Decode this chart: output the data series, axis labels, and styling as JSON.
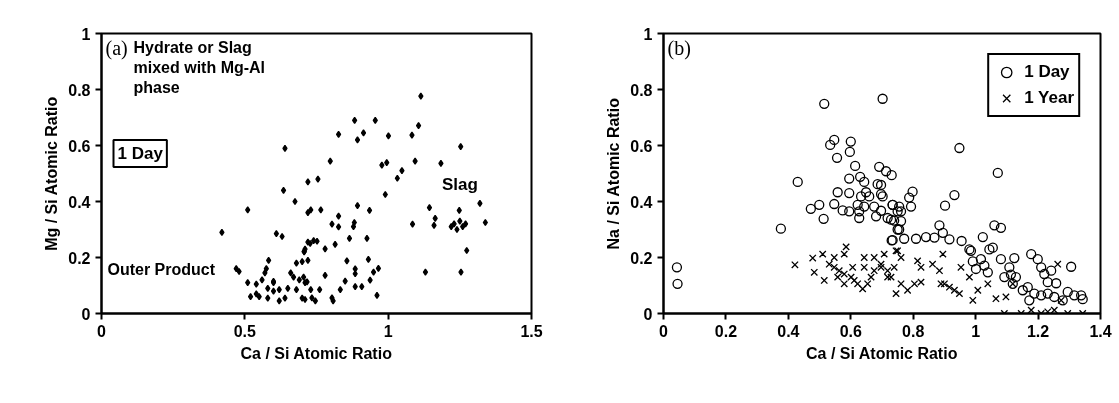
{
  "chart_data": [
    {
      "type": "scatter",
      "title": "(a)",
      "xlabel": "Ca / Si Atomic Ratio",
      "ylabel": "Mg / Si Atomic Ratio",
      "xlim": [
        0,
        1.5
      ],
      "ylim": [
        0,
        1
      ],
      "xticks": [
        0,
        0.5,
        1,
        1.5
      ],
      "yticks": [
        0,
        0.2,
        0.4,
        0.6,
        0.8,
        1
      ],
      "grid": false,
      "legend": false,
      "marker": "diamond",
      "annotations": [
        "Hydrate or Slag\nmixed with Mg-Al\nphase",
        "Outer Product",
        {
          "text": "Slag",
          "x": 1.25,
          "y": 0.32
        },
        "1 Day"
      ],
      "series": [
        {
          "color": "#000000",
          "x": [
            0.64,
            0.635,
            0.72,
            0.755,
            0.675,
            0.72,
            0.73,
            0.51,
            0.42,
            0.61,
            0.63,
            0.72,
            0.74,
            0.707,
            0.71,
            0.72,
            0.7,
            0.68,
            0.583,
            0.575,
            0.57,
            0.47,
            0.48,
            0.51,
            0.54,
            0.56,
            0.6,
            0.66,
            0.67,
            0.69,
            0.71,
            0.68,
            0.65,
            0.6,
            0.58,
            0.52,
            0.55,
            0.58,
            0.62,
            0.64,
            0.7,
            0.71,
            0.73,
            0.6,
            0.62,
            0.54,
            1.114,
            0.883,
            0.955,
            0.914,
            0.893,
            0.827,
            1.001,
            1.083,
            1.106,
            1.253,
            0.798,
            0.978,
            0.995,
            1.094,
            1.184,
            1.048,
            1.032,
            0.99,
            0.893,
            0.935,
            1.144,
            1.32,
            1.248,
            1.339,
            1.085,
            1.164,
            1.16,
            1.22,
            1.23,
            1.25,
            1.26,
            1.27,
            1.24,
            1.274,
            1.13,
            1.254,
            0.765,
            0.827,
            0.804,
            0.827,
            0.882,
            0.879,
            0.865,
            0.926,
            0.815,
            0.78,
            0.752,
            0.728,
            0.707,
            0.856,
            0.931,
            0.885,
            0.885,
            0.966,
            0.949,
            0.78,
            0.85,
            0.885,
            0.908,
            0.937,
            0.833,
            0.761,
            0.734,
            0.746,
            0.804,
            0.808,
            0.961,
            0.705,
            0.717
          ],
          "values": [
            0.59,
            0.44,
            0.47,
            0.48,
            0.4,
            0.36,
            0.37,
            0.37,
            0.29,
            0.285,
            0.275,
            0.255,
            0.26,
            0.22,
            0.23,
            0.19,
            0.185,
            0.18,
            0.19,
            0.16,
            0.145,
            0.16,
            0.15,
            0.11,
            0.105,
            0.12,
            0.115,
            0.145,
            0.13,
            0.12,
            0.11,
            0.085,
            0.09,
            0.08,
            0.09,
            0.06,
            0.06,
            0.055,
            0.045,
            0.055,
            0.055,
            0.05,
            0.085,
            0.11,
            0.085,
            0.07,
            0.776,
            0.69,
            0.69,
            0.645,
            0.62,
            0.64,
            0.634,
            0.637,
            0.671,
            0.596,
            0.544,
            0.53,
            0.539,
            0.544,
            0.536,
            0.51,
            0.483,
            0.425,
            0.385,
            0.368,
            0.378,
            0.393,
            0.368,
            0.325,
            0.319,
            0.34,
            0.315,
            0.31,
            0.32,
            0.33,
            0.31,
            0.32,
            0.3,
            0.225,
            0.148,
            0.148,
            0.37,
            0.348,
            0.319,
            0.309,
            0.325,
            0.31,
            0.268,
            0.268,
            0.247,
            0.231,
            0.258,
            0.25,
            0.222,
            0.188,
            0.193,
            0.159,
            0.142,
            0.161,
            0.148,
            0.136,
            0.116,
            0.096,
            0.096,
            0.119,
            0.085,
            0.085,
            0.056,
            0.045,
            0.056,
            0.045,
            0.065,
            0.13,
            0.113
          ]
        }
      ]
    },
    {
      "type": "scatter",
      "title": "(b)",
      "xlabel": "Ca / Si Atomic Ratio",
      "ylabel": "Na / Si Atomic Ratio",
      "xlim": [
        0,
        1.4
      ],
      "ylim": [
        0,
        1
      ],
      "xticks": [
        0,
        0.2,
        0.4,
        0.6,
        0.8,
        1,
        1.2,
        1.4
      ],
      "yticks": [
        0,
        0.2,
        0.4,
        0.6,
        0.8,
        1
      ],
      "grid": false,
      "legend": "top right",
      "series": [
        {
          "name": "1 Day",
          "color": "#000000",
          "marker": "circle",
          "x": [
            0.043,
            0.045,
            0.376,
            0.43,
            0.515,
            0.702,
            0.534,
            0.547,
            0.6,
            0.597,
            0.556,
            0.614,
            0.691,
            0.713,
            0.731,
            0.63,
            0.595,
            0.643,
            0.686,
            0.558,
            0.595,
            0.649,
            0.697,
            0.659,
            0.633,
            0.472,
            0.499,
            0.513,
            0.547,
            0.574,
            0.595,
            0.622,
            0.627,
            0.643,
            0.675,
            0.681,
            0.697,
            0.718,
            0.734,
            0.729,
            0.75,
            0.761,
            0.627,
            0.731,
            0.948,
            1.071,
            0.697,
            0.702,
            0.734,
            0.755,
            0.75,
            0.793,
            0.798,
            0.787,
            0.739,
            0.761,
            0.755,
            0.734,
            0.771,
            0.809,
            0.841,
            0.868,
            0.884,
            0.895,
            0.916,
            0.955,
            0.98,
            1.023,
            1.055,
            1.044,
            1.06,
            1.081,
            0.932,
            0.902,
            0.985,
            1.017,
            1.028,
            1.039,
            0.991,
            1.001,
            1.081,
            1.124,
            1.108,
            1.113,
            1.129,
            1.178,
            1.199,
            1.21,
            1.22,
            1.231,
            1.242,
            1.258,
            1.306,
            1.167,
            1.188,
            1.21,
            1.231,
            1.252,
            1.295,
            1.316,
            1.338,
            1.343,
            1.279,
            1.172,
            1.092,
            1.119,
            1.151
          ],
          "values": [
            0.165,
            0.106,
            0.303,
            0.47,
            0.749,
            0.767,
            0.602,
            0.62,
            0.614,
            0.577,
            0.556,
            0.527,
            0.524,
            0.508,
            0.494,
            0.488,
            0.482,
            0.47,
            0.462,
            0.433,
            0.43,
            0.433,
            0.426,
            0.418,
            0.418,
            0.374,
            0.388,
            0.338,
            0.391,
            0.368,
            0.365,
            0.388,
            0.365,
            0.382,
            0.382,
            0.347,
            0.367,
            0.341,
            0.388,
            0.335,
            0.3,
            0.365,
            0.341,
            0.261,
            0.591,
            0.502,
            0.459,
            0.418,
            0.388,
            0.382,
            0.365,
            0.382,
            0.435,
            0.414,
            0.332,
            0.33,
            0.3,
            0.262,
            0.267,
            0.267,
            0.273,
            0.271,
            0.315,
            0.288,
            0.265,
            0.259,
            0.229,
            0.273,
            0.235,
            0.229,
            0.315,
            0.306,
            0.423,
            0.385,
            0.224,
            0.194,
            0.171,
            0.147,
            0.186,
            0.159,
            0.194,
            0.198,
            0.165,
            0.139,
            0.13,
            0.212,
            0.194,
            0.165,
            0.141,
            0.112,
            0.153,
            0.108,
            0.167,
            0.094,
            0.071,
            0.065,
            0.071,
            0.059,
            0.077,
            0.065,
            0.065,
            0.051,
            0.047,
            0.047,
            0.13,
            0.106,
            0.083
          ]
        },
        {
          "name": "1 Year",
          "color": "#000000",
          "marker": "cross",
          "x": [
            0.421,
            0.478,
            0.51,
            0.585,
            0.483,
            0.515,
            0.531,
            0.547,
            0.563,
            0.579,
            0.601,
            0.547,
            0.579,
            0.558,
            0.622,
            0.638,
            0.654,
            0.665,
            0.643,
            0.675,
            0.643,
            0.697,
            0.718,
            0.729,
            0.739,
            0.761,
            0.75,
            0.707,
            0.606,
            0.611,
            0.579,
            0.675,
            0.745,
            0.697,
            0.718,
            0.761,
            0.745,
            0.782,
            0.804,
            0.825,
            0.814,
            0.825,
            0.862,
            0.895,
            0.884,
            0.9,
            0.932,
            0.948,
            0.953,
            0.98,
            0.991,
            1.007,
            1.039,
            1.065,
            1.092,
            1.097,
            1.119,
            1.146,
            1.178,
            1.21,
            1.231,
            1.252,
            1.263,
            1.274,
            1.295,
            1.343,
            0.889,
            0.916
          ],
          "values": [
            0.174,
            0.198,
            0.212,
            0.238,
            0.147,
            0.118,
            0.176,
            0.165,
            0.153,
            0.141,
            0.13,
            0.2,
            0.212,
            0.13,
            0.106,
            0.088,
            0.106,
            0.13,
            0.165,
            0.2,
            0.2,
            0.176,
            0.153,
            0.13,
            0.165,
            0.2,
            0.224,
            0.212,
            0.165,
            0.118,
            0.106,
            0.153,
            0.224,
            0.165,
            0.13,
            0.106,
            0.071,
            0.083,
            0.106,
            0.112,
            0.188,
            0.165,
            0.176,
            0.212,
            0.153,
            0.106,
            0.083,
            0.071,
            0.165,
            0.13,
            0.047,
            0.083,
            0.106,
            0.053,
            0,
            0.059,
            0.106,
            0,
            0.012,
            0,
            0.006,
            0.012,
            0.176,
            0.047,
            0,
            0,
            0.106,
            0.094
          ]
        }
      ]
    }
  ]
}
